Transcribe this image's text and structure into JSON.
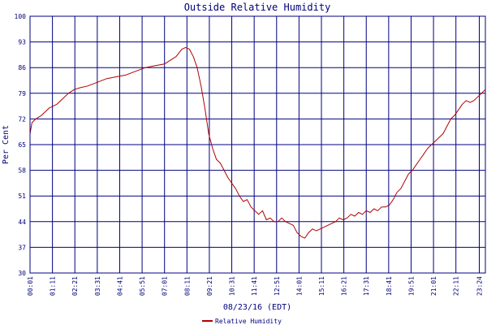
{
  "colors": {
    "background": "#ffffff",
    "grid": "#000080",
    "text": "#00007a",
    "series": "#b00000"
  },
  "chart_data": {
    "type": "line",
    "title": "Outside Relative Humidity",
    "xlabel": "08/23/16 (EDT)",
    "ylabel": "Per Cent",
    "ylim": [
      30,
      100
    ],
    "yticks": [
      30,
      37,
      44,
      51,
      58,
      65,
      72,
      79,
      86,
      93,
      100
    ],
    "x_unit": "hours since 00:01",
    "xlim": [
      0,
      23.7
    ],
    "xtick_labels": [
      "00:01",
      "01:11",
      "02:21",
      "03:31",
      "04:41",
      "05:51",
      "07:01",
      "08:11",
      "09:21",
      "10:31",
      "11:41",
      "12:51",
      "14:01",
      "15:11",
      "16:21",
      "17:31",
      "18:41",
      "19:51",
      "21:01",
      "22:11",
      "23:24"
    ],
    "xtick_hours": [
      0,
      1.1667,
      2.3333,
      3.5,
      4.6667,
      5.8333,
      7.0,
      8.1667,
      9.3333,
      10.5,
      11.6667,
      12.8333,
      14.0,
      15.1667,
      16.3333,
      17.5,
      18.6667,
      19.8333,
      21.0,
      22.1667,
      23.3833
    ],
    "grid": true,
    "legend_position": "bottom-center",
    "series": [
      {
        "name": "Relative Humidity",
        "x": [
          0.0,
          0.1,
          0.3,
          0.6,
          1.0,
          1.4,
          1.8,
          2.0,
          2.3,
          2.6,
          3.0,
          3.5,
          4.0,
          4.5,
          5.0,
          5.5,
          6.0,
          6.5,
          7.0,
          7.3,
          7.6,
          7.9,
          8.1,
          8.3,
          8.5,
          8.7,
          8.9,
          9.1,
          9.3,
          9.5,
          9.7,
          9.9,
          10.1,
          10.3,
          10.5,
          10.7,
          10.9,
          11.1,
          11.3,
          11.5,
          11.7,
          11.9,
          12.1,
          12.3,
          12.5,
          12.7,
          12.9,
          13.1,
          13.3,
          13.5,
          13.7,
          13.9,
          14.1,
          14.3,
          14.5,
          14.7,
          14.9,
          15.1,
          15.3,
          15.5,
          15.7,
          15.9,
          16.1,
          16.3,
          16.5,
          16.7,
          16.9,
          17.1,
          17.3,
          17.5,
          17.7,
          17.9,
          18.1,
          18.3,
          18.5,
          18.7,
          18.9,
          19.1,
          19.3,
          19.5,
          19.7,
          19.9,
          20.1,
          20.3,
          20.5,
          20.7,
          20.9,
          21.1,
          21.3,
          21.5,
          21.7,
          21.9,
          22.1,
          22.3,
          22.5,
          22.7,
          22.9,
          23.1,
          23.3,
          23.5,
          23.7
        ],
        "values": [
          68,
          71,
          72,
          73,
          75,
          76,
          78,
          79,
          80,
          80.5,
          81,
          82,
          83,
          83.5,
          84,
          85,
          86,
          86.5,
          87,
          88,
          89,
          91,
          91.5,
          91,
          89,
          86,
          81,
          75,
          68,
          64,
          61,
          60,
          58,
          56,
          54.5,
          53,
          51,
          49.5,
          50,
          48,
          47,
          46,
          47,
          44.5,
          45,
          44,
          44,
          45,
          44,
          43.5,
          43,
          41,
          40,
          39.5,
          41,
          42,
          41.5,
          42,
          42.5,
          43,
          43.5,
          44,
          45,
          44.5,
          45,
          46,
          45.5,
          46.5,
          46,
          47,
          46.5,
          47.5,
          47,
          48,
          48,
          48.5,
          50,
          52,
          53,
          55,
          57,
          58,
          59.5,
          61,
          62.5,
          64,
          65,
          66,
          67,
          68,
          70,
          72,
          73,
          74.5,
          76,
          77,
          76.5,
          77,
          78,
          79,
          80
        ]
      }
    ]
  }
}
